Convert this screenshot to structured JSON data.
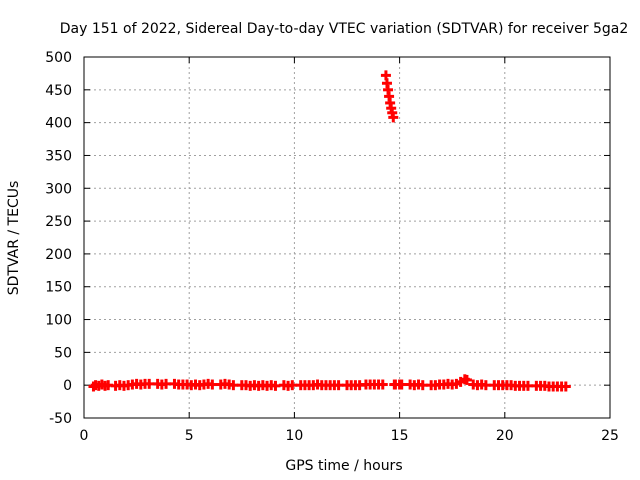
{
  "chart_data": {
    "type": "scatter",
    "title": "Day 151 of 2022, Sidereal Day-to-day VTEC variation (SDTVAR) for receiver 5ga2",
    "xlabel": "GPS time / hours",
    "ylabel": "SDTVAR / TECUs",
    "xlim": [
      0,
      25
    ],
    "ylim": [
      -50,
      500
    ],
    "x_ticks": [
      0,
      5,
      10,
      15,
      20,
      25
    ],
    "y_ticks": [
      -50,
      0,
      50,
      100,
      150,
      200,
      250,
      300,
      350,
      400,
      450,
      500
    ],
    "grid": true,
    "series": [
      {
        "name": "SDTVAR",
        "color": "#ff0000",
        "marker": "plus",
        "x": [
          0.45,
          0.55,
          0.7,
          0.85,
          1.0,
          1.15,
          1.5,
          1.7,
          1.9,
          2.1,
          2.3,
          2.5,
          2.7,
          2.9,
          3.1,
          3.5,
          3.7,
          3.9,
          4.3,
          4.5,
          4.7,
          4.9,
          5.1,
          5.3,
          5.5,
          5.7,
          5.9,
          6.1,
          6.5,
          6.7,
          6.9,
          7.1,
          7.5,
          7.7,
          7.9,
          8.1,
          8.3,
          8.5,
          8.7,
          8.9,
          9.1,
          9.5,
          9.7,
          9.9,
          10.3,
          10.5,
          10.7,
          10.9,
          11.1,
          11.3,
          11.5,
          11.7,
          11.9,
          12.1,
          12.5,
          12.7,
          12.9,
          13.1,
          13.4,
          13.6,
          13.8,
          14.0,
          14.2,
          14.35,
          14.4,
          14.45,
          14.5,
          14.55,
          14.6,
          14.65,
          14.7,
          14.75,
          14.8,
          15.0,
          15.1,
          15.5,
          15.7,
          15.9,
          16.1,
          16.5,
          16.7,
          16.9,
          17.1,
          17.3,
          17.5,
          17.7,
          17.9,
          18.1,
          18.2,
          18.5,
          18.7,
          18.9,
          19.1,
          19.5,
          19.7,
          19.9,
          20.1,
          20.3,
          20.5,
          20.7,
          20.9,
          21.1,
          21.5,
          21.7,
          21.9,
          22.1,
          22.3,
          22.5,
          22.7,
          22.9
        ],
        "y": [
          -2,
          0,
          -1,
          1,
          -1,
          0,
          -1,
          0,
          -1,
          0,
          1,
          2,
          1,
          2,
          2,
          2,
          1,
          2,
          2,
          1,
          1,
          1,
          0,
          1,
          0,
          1,
          2,
          1,
          1,
          2,
          1,
          0,
          0,
          0,
          -1,
          0,
          -1,
          0,
          -1,
          0,
          -1,
          0,
          -1,
          0,
          0,
          0,
          0,
          0,
          1,
          0,
          0,
          0,
          0,
          0,
          0,
          0,
          0,
          0,
          1,
          1,
          1,
          1,
          1,
          472,
          460,
          450,
          440,
          430,
          422,
          415,
          408,
          1,
          1,
          1,
          1,
          1,
          0,
          1,
          0,
          0,
          0,
          1,
          1,
          2,
          1,
          2,
          5,
          9,
          8,
          1,
          0,
          1,
          0,
          0,
          0,
          0,
          0,
          0,
          -1,
          -1,
          -1,
          -1,
          -1,
          -1,
          -1,
          -2,
          -2,
          -2,
          -2,
          -2
        ]
      }
    ]
  }
}
